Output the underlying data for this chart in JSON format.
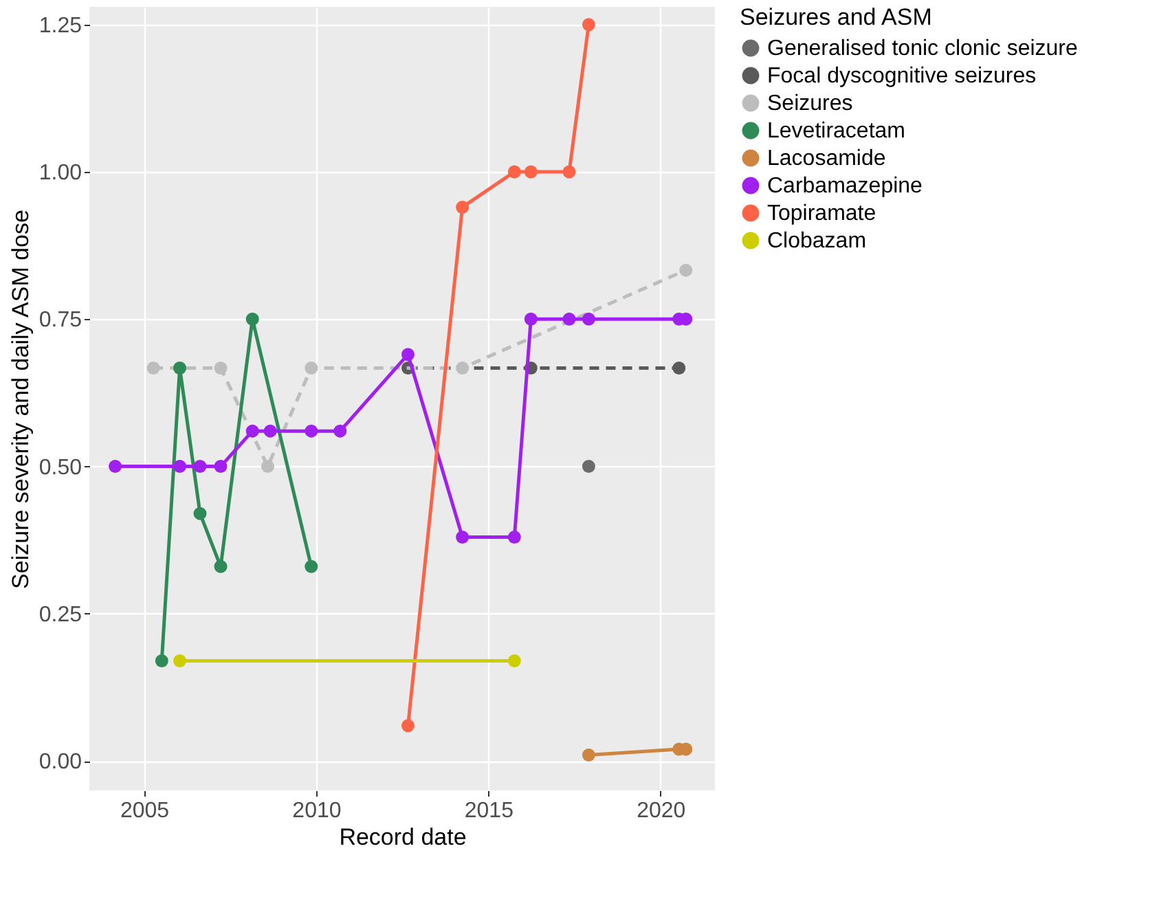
{
  "chart_data": {
    "type": "line",
    "xlabel": "Record date",
    "ylabel": "Seizure severity and daily ASM dose",
    "legend_title": "Seizures and ASM",
    "legend": "right",
    "grid": true,
    "marker": "circle",
    "xlim": [
      "2003-06-01",
      "2021-08-01"
    ],
    "xticks": [
      {
        "value": "2005-01-01",
        "label": "2005"
      },
      {
        "value": "2010-01-01",
        "label": "2010"
      },
      {
        "value": "2015-01-01",
        "label": "2015"
      },
      {
        "value": "2020-01-01",
        "label": "2020"
      }
    ],
    "ylim": [
      -0.05,
      1.28
    ],
    "yticks": [
      {
        "value": 0,
        "label": "0.00"
      },
      {
        "value": 0.25,
        "label": "0.25"
      },
      {
        "value": 0.5,
        "label": "0.50"
      },
      {
        "value": 0.75,
        "label": "0.75"
      },
      {
        "value": 1,
        "label": "1.00"
      },
      {
        "value": 1.25,
        "label": "1.25"
      }
    ],
    "series": [
      {
        "name": "Generalised tonic clonic seizure",
        "type": "scatter",
        "color": "#6b6b6b",
        "x": [
          "2017-12-01"
        ],
        "values": [
          0.5
        ]
      },
      {
        "name": "Focal dyscognitive seizures",
        "color": "#5a5a5a",
        "line_style": "dashed",
        "x": [
          "2012-09-01",
          "2016-03-28",
          "2020-07-16"
        ],
        "values": [
          0.667,
          0.667,
          0.667
        ]
      },
      {
        "name": "Seizures",
        "color": "#bdbdbd",
        "line_style": "dashed",
        "x": [
          "2005-04-10",
          "2006-01-15",
          "2007-03-25",
          "2008-08-05",
          "2009-11-10",
          "2014-04-01",
          "2020-09-27"
        ],
        "values": [
          0.667,
          0.667,
          0.667,
          0.5,
          0.667,
          0.667,
          0.833
        ]
      },
      {
        "name": "Levetiracetam",
        "color": "#2e8b57",
        "line_style": "solid",
        "x": [
          "2005-07-08",
          "2006-01-15",
          "2006-08-18",
          "2007-03-25",
          "2008-02-25",
          "2009-11-10"
        ],
        "values": [
          0.17,
          0.667,
          0.42,
          0.33,
          0.75,
          0.33
        ]
      },
      {
        "name": "Lacosamide",
        "color": "#cd853f",
        "line_style": "solid",
        "x": [
          "2017-12-01",
          "2020-07-16",
          "2020-09-27"
        ],
        "values": [
          0.01,
          0.02,
          0.02
        ]
      },
      {
        "name": "Carbamazepine",
        "color": "#a020f0",
        "line_style": "solid",
        "x": [
          "2004-03-01",
          "2006-01-15",
          "2006-08-18",
          "2007-03-25",
          "2008-02-25",
          "2008-09-01",
          "2009-11-10",
          "2010-09-12",
          "2012-09-01",
          "2014-04-01",
          "2015-10-05",
          "2016-03-28",
          "2017-05-08",
          "2017-12-01",
          "2020-07-16",
          "2020-09-27"
        ],
        "values": [
          0.5,
          0.5,
          0.5,
          0.5,
          0.56,
          0.56,
          0.56,
          0.56,
          0.69,
          0.38,
          0.38,
          0.75,
          0.75,
          0.75,
          0.75,
          0.75
        ]
      },
      {
        "name": "Topiramate",
        "color": "#ff6347",
        "line_style": "solid",
        "x": [
          "2012-09-01",
          "2014-04-01",
          "2015-10-05",
          "2016-03-28",
          "2017-05-08",
          "2017-12-01"
        ],
        "values": [
          0.06,
          0.94,
          1.0,
          1.0,
          1.0,
          1.25
        ]
      },
      {
        "name": "Clobazam",
        "color": "#cdcd00",
        "line_style": "solid",
        "x": [
          "2006-01-15",
          "2015-10-05"
        ],
        "values": [
          0.17,
          0.17
        ]
      }
    ]
  }
}
